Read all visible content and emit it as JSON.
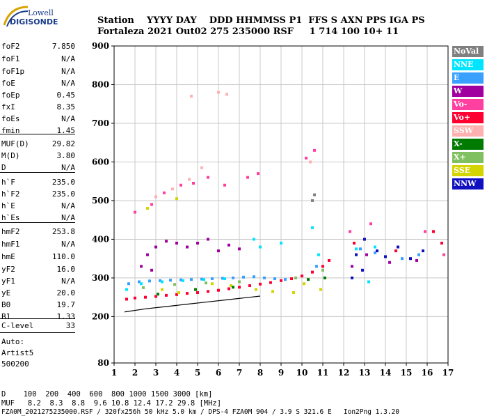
{
  "logo": {
    "top": "Lowell",
    "bottom": "DIGISONDE"
  },
  "header": {
    "line1": "Station    YYYY DAY    DDD HHMMSS P1  FFS S AXN PPS IGA PS",
    "line2": "Fortaleza 2021 Out02 275 235000 RSF     1 714 100 10+ 11"
  },
  "params": [
    {
      "name": "foF2",
      "value": "7.850"
    },
    {
      "name": "foF1",
      "value": "N/A"
    },
    {
      "name": "foF1p",
      "value": "N/A"
    },
    {
      "name": "foE",
      "value": "N/A"
    },
    {
      "name": "foEp",
      "value": "0.45"
    },
    {
      "name": "fxI",
      "value": "8.35"
    },
    {
      "name": "foEs",
      "value": "N/A"
    },
    {
      "name": "fmin",
      "value": "1.45"
    },
    {
      "name": "MUF(D)",
      "value": "29.82"
    },
    {
      "name": "M(D)",
      "value": "3.80"
    },
    {
      "name": "D",
      "value": "N/A"
    },
    {
      "name": "h`F",
      "value": "235.0"
    },
    {
      "name": "h`F2",
      "value": "235.0"
    },
    {
      "name": "h`E",
      "value": "N/A"
    },
    {
      "name": "h`Es",
      "value": "N/A"
    },
    {
      "name": "hmF2",
      "value": "253.8"
    },
    {
      "name": "hmF1",
      "value": "N/A"
    },
    {
      "name": "hmE",
      "value": "110.0"
    },
    {
      "name": "yF2",
      "value": "16.0"
    },
    {
      "name": "yF1",
      "value": "N/A"
    },
    {
      "name": "yE",
      "value": "20.0"
    },
    {
      "name": "B0",
      "value": "19.7"
    },
    {
      "name": "B1",
      "value": "1.33"
    }
  ],
  "clevel": {
    "name": "C-level",
    "value": "33"
  },
  "autoscale": {
    "line1": "Auto:",
    "line2": "Artist5",
    "line3": "500200"
  },
  "legend": [
    {
      "label": "NoVal",
      "color": "#808080"
    },
    {
      "label": "NNE",
      "color": "#00e5ff"
    },
    {
      "label": "E",
      "color": "#3aa0ff"
    },
    {
      "label": "W",
      "color": "#a000a0"
    },
    {
      "label": "Vo-",
      "color": "#ff40a0"
    },
    {
      "label": "Vo+",
      "color": "#ff0030"
    },
    {
      "label": "SSW",
      "color": "#ffb0b0"
    },
    {
      "label": "X-",
      "color": "#007a00"
    },
    {
      "label": "X+",
      "color": "#80c060"
    },
    {
      "label": "SSE",
      "color": "#d4d400"
    },
    {
      "label": "NNW",
      "color": "#1010c0"
    }
  ],
  "footer": {
    "line1": "D    100  200  400  600  800 1000 1500 3000 [km]",
    "line2": "MUF   8.2  8.3  8.8  9.6 10.8 12.4 17.2 29.8 [MHz]",
    "line3": "FZA0M_2021275235000.RSF / 320fx256h 50 kHz 5.0 km / DPS-4 FZA0M 904 / 3.9 S 321.6 E   Ion2Png 1.3.20"
  },
  "chart_data": {
    "type": "scatter",
    "xlabel": "",
    "ylabel": "",
    "xlim": [
      1,
      17
    ],
    "ylim": [
      80,
      900
    ],
    "x_ticks": [
      1,
      2,
      3,
      4,
      5,
      6,
      7,
      8,
      9,
      10,
      11,
      12,
      13,
      14,
      15,
      16,
      17
    ],
    "y_ticks": [
      80,
      200,
      300,
      400,
      500,
      600,
      700,
      800,
      900
    ],
    "grid": true,
    "series": [
      {
        "name": "Vo+",
        "color": "#ff0030",
        "points": [
          [
            1.6,
            245
          ],
          [
            2.0,
            248
          ],
          [
            2.5,
            250
          ],
          [
            3.0,
            252
          ],
          [
            3.5,
            255
          ],
          [
            4.0,
            257
          ],
          [
            4.5,
            260
          ],
          [
            5.0,
            262
          ],
          [
            5.5,
            265
          ],
          [
            6.0,
            268
          ],
          [
            6.5,
            272
          ],
          [
            7.0,
            276
          ],
          [
            7.5,
            280
          ],
          [
            8.0,
            284
          ],
          [
            8.5,
            288
          ],
          [
            9.0,
            293
          ],
          [
            9.5,
            298
          ],
          [
            10.0,
            305
          ],
          [
            10.5,
            315
          ],
          [
            11.0,
            330
          ],
          [
            11.3,
            345
          ],
          [
            12.5,
            390
          ],
          [
            13.0,
            400
          ],
          [
            14.5,
            370
          ],
          [
            16.3,
            420
          ],
          [
            16.7,
            390
          ]
        ]
      },
      {
        "name": "E",
        "color": "#3aa0ff",
        "points": [
          [
            1.7,
            285
          ],
          [
            2.2,
            290
          ],
          [
            2.7,
            292
          ],
          [
            3.2,
            293
          ],
          [
            3.7,
            294
          ],
          [
            4.2,
            295
          ],
          [
            4.7,
            296
          ],
          [
            5.2,
            297
          ],
          [
            5.7,
            298
          ],
          [
            6.2,
            299
          ],
          [
            6.7,
            300
          ],
          [
            7.2,
            302
          ],
          [
            7.7,
            303
          ],
          [
            8.2,
            300
          ],
          [
            8.7,
            298
          ],
          [
            9.2,
            296
          ],
          [
            10.7,
            330
          ],
          [
            12.8,
            375
          ],
          [
            13.5,
            365
          ],
          [
            14.8,
            350
          ],
          [
            15.6,
            360
          ]
        ]
      },
      {
        "name": "NNE",
        "color": "#00e5ff",
        "points": [
          [
            1.6,
            270
          ],
          [
            2.3,
            285
          ],
          [
            3.3,
            290
          ],
          [
            4.3,
            293
          ],
          [
            5.3,
            296
          ],
          [
            6.3,
            298
          ],
          [
            7.7,
            400
          ],
          [
            8.0,
            380
          ],
          [
            9.0,
            390
          ],
          [
            10.5,
            430
          ],
          [
            10.8,
            360
          ],
          [
            12.6,
            375
          ],
          [
            13.2,
            290
          ],
          [
            13.5,
            380
          ]
        ]
      },
      {
        "name": "W",
        "color": "#a000a0",
        "points": [
          [
            2.6,
            360
          ],
          [
            3.0,
            380
          ],
          [
            3.5,
            395
          ],
          [
            4.0,
            390
          ],
          [
            4.5,
            380
          ],
          [
            5.0,
            390
          ],
          [
            5.5,
            400
          ],
          [
            6.0,
            370
          ],
          [
            6.5,
            385
          ],
          [
            7.0,
            375
          ],
          [
            2.3,
            330
          ],
          [
            2.8,
            320
          ],
          [
            12.4,
            330
          ],
          [
            13.1,
            360
          ],
          [
            14.2,
            340
          ],
          [
            15.5,
            345
          ]
        ]
      },
      {
        "name": "SSE",
        "color": "#d4d400",
        "points": [
          [
            3.3,
            270
          ],
          [
            4.1,
            262
          ],
          [
            5.7,
            285
          ],
          [
            6.6,
            280
          ],
          [
            7.8,
            270
          ],
          [
            8.6,
            265
          ],
          [
            9.6,
            262
          ],
          [
            10.1,
            285
          ],
          [
            10.9,
            270
          ],
          [
            2.6,
            480
          ],
          [
            4.0,
            505
          ]
        ]
      },
      {
        "name": "Vo-",
        "color": "#ff40a0",
        "points": [
          [
            2.0,
            470
          ],
          [
            2.8,
            490
          ],
          [
            3.4,
            520
          ],
          [
            4.2,
            540
          ],
          [
            4.8,
            545
          ],
          [
            5.5,
            560
          ],
          [
            6.3,
            540
          ],
          [
            7.4,
            560
          ],
          [
            7.9,
            570
          ],
          [
            10.2,
            610
          ],
          [
            10.6,
            630
          ],
          [
            12.3,
            420
          ],
          [
            13.3,
            440
          ],
          [
            15.9,
            420
          ],
          [
            16.8,
            360
          ]
        ]
      },
      {
        "name": "SSW",
        "color": "#ffb0b0",
        "points": [
          [
            3.0,
            510
          ],
          [
            3.8,
            530
          ],
          [
            4.6,
            555
          ],
          [
            5.2,
            585
          ],
          [
            6.0,
            780
          ],
          [
            6.4,
            775
          ],
          [
            4.7,
            770
          ],
          [
            10.4,
            600
          ]
        ]
      },
      {
        "name": "X+",
        "color": "#80c060",
        "points": [
          [
            2.4,
            275
          ],
          [
            3.9,
            283
          ],
          [
            5.4,
            287
          ],
          [
            7.0,
            290
          ],
          [
            9.7,
            300
          ],
          [
            11.0,
            320
          ]
        ]
      },
      {
        "name": "X-",
        "color": "#007a00",
        "points": [
          [
            3.1,
            258
          ],
          [
            4.9,
            270
          ],
          [
            6.7,
            276
          ],
          [
            10.3,
            296
          ],
          [
            11.1,
            300
          ]
        ]
      },
      {
        "name": "NNW",
        "color": "#1010c0",
        "points": [
          [
            12.6,
            360
          ],
          [
            13.0,
            400
          ],
          [
            13.6,
            370
          ],
          [
            14.0,
            355
          ],
          [
            14.6,
            380
          ],
          [
            15.2,
            350
          ],
          [
            15.8,
            370
          ],
          [
            12.4,
            300
          ],
          [
            12.9,
            320
          ]
        ]
      },
      {
        "name": "NoVal",
        "color": "#808080",
        "points": [
          [
            10.6,
            515
          ],
          [
            10.5,
            500
          ]
        ]
      }
    ],
    "profile_line": [
      [
        1.5,
        212
      ],
      [
        2.5,
        220
      ],
      [
        3.5,
        226
      ],
      [
        4.5,
        232
      ],
      [
        5.5,
        238
      ],
      [
        6.5,
        244
      ],
      [
        7.5,
        250
      ],
      [
        8.0,
        253
      ]
    ]
  }
}
